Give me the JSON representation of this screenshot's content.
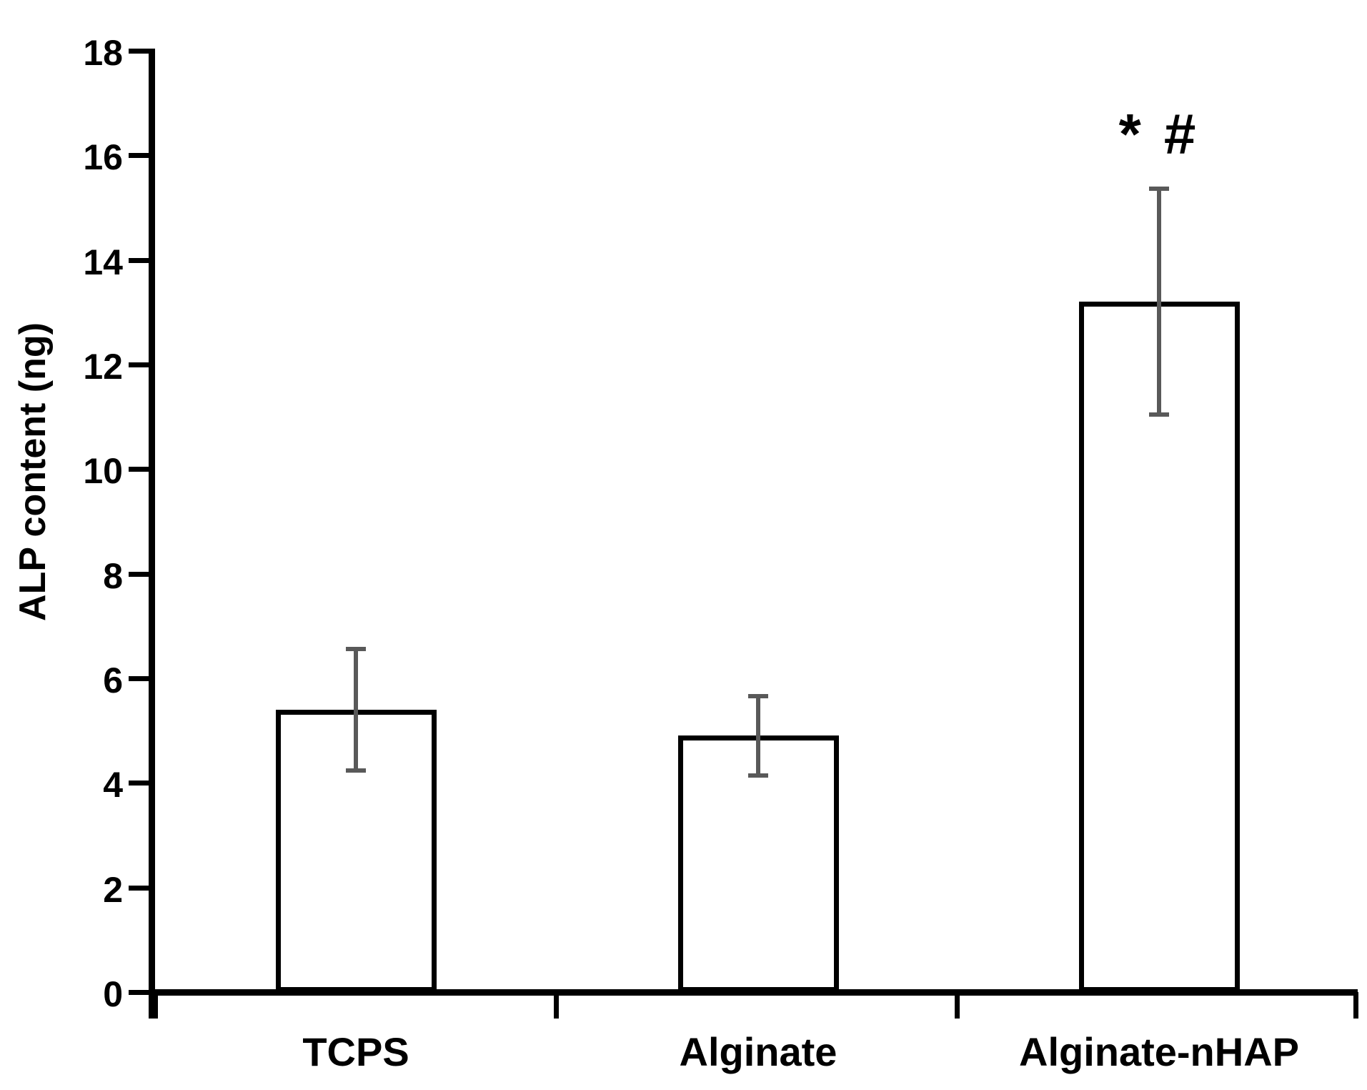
{
  "chart_data": {
    "type": "bar",
    "title": "",
    "xlabel": "",
    "ylabel": "ALP content (ng)",
    "categories": [
      "TCPS",
      "Alginate",
      "Alginate-nHAP"
    ],
    "values": [
      5.4,
      4.9,
      13.2
    ],
    "error_bars": {
      "upper": [
        6.6,
        5.7,
        15.4
      ],
      "lower": [
        4.2,
        4.1,
        11.0
      ]
    },
    "ylim": [
      0,
      18
    ],
    "ytick_step": 2,
    "yticks": [
      0,
      2,
      4,
      6,
      8,
      10,
      12,
      14,
      16,
      18
    ],
    "grid": false,
    "legend": null,
    "annotations": [
      {
        "text": "* #",
        "category_index": 2,
        "y": 16.4
      }
    ]
  },
  "style": {
    "background": "#ffffff",
    "bar_fill": "#ffffff",
    "bar_border": "#000000",
    "axis_color": "#000000",
    "error_bar_color": "#595959",
    "text_color": "#000000"
  }
}
